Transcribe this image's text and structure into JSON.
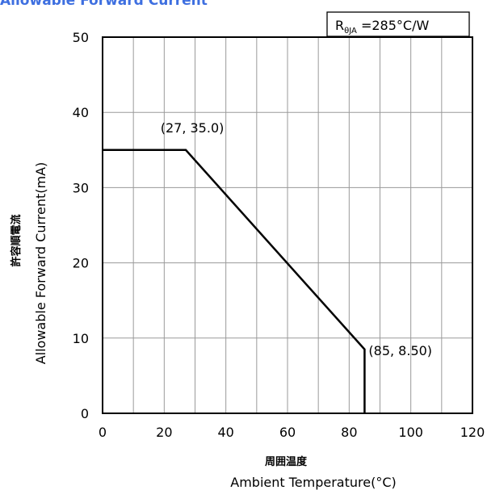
{
  "chart_data": {
    "type": "line",
    "title": "Allowable Forward Current",
    "xlabel_jp": "周囲温度",
    "xlabel": "Ambient Temperature(°C)",
    "ylabel_jp": "許容順電流",
    "ylabel": "Allowable Forward Current(mA)",
    "xlim": [
      0,
      120
    ],
    "ylim": [
      0,
      50
    ],
    "x_ticks": [
      0,
      20,
      40,
      60,
      80,
      100,
      120
    ],
    "y_ticks": [
      0,
      10,
      20,
      30,
      40,
      50
    ],
    "x_grid": [
      0,
      10,
      20,
      30,
      40,
      50,
      60,
      70,
      80,
      90,
      100,
      110,
      120
    ],
    "y_grid": [
      0,
      10,
      20,
      30,
      40,
      50
    ],
    "grid": true,
    "legend": {
      "main": "R",
      "sub": "θJA",
      "rest": " =285°C/W",
      "placement": "top-right"
    },
    "series": [
      {
        "x": [
          0,
          27,
          85,
          85
        ],
        "y": [
          35.0,
          35.0,
          8.5,
          0
        ]
      }
    ],
    "annotations": [
      {
        "text": "(27, 35.0)",
        "x": 27,
        "y": 35.0
      },
      {
        "text": "(85, 8.50)",
        "x": 85,
        "y": 8.5
      }
    ]
  }
}
